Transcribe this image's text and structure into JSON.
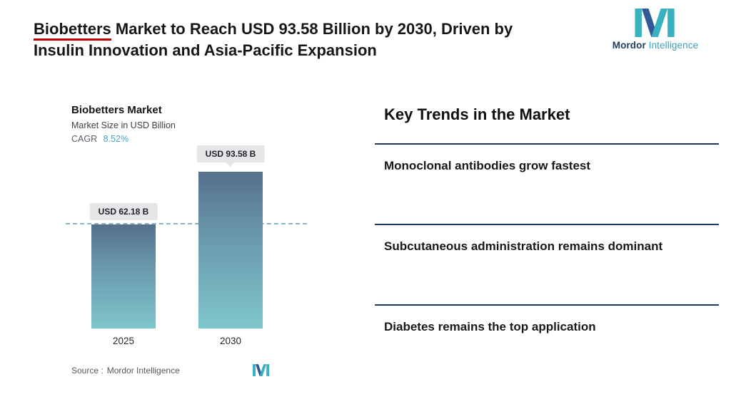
{
  "header": {
    "title_underlined": "Biobetters",
    "title_line1_rest": " Market to Reach USD 93.58 Billion by 2030, Driven by",
    "title_line2": "Insulin Innovation and Asia-Pacific Expansion"
  },
  "brand": {
    "name_bold": "Mordor",
    "name_light": "Intelligence"
  },
  "chart_data": {
    "type": "bar",
    "title": "Biobetters Market",
    "subtitle": "Market Size in USD Billion",
    "cagr_label": "CAGR",
    "cagr_value": "8.52%",
    "categories": [
      "2025",
      "2030"
    ],
    "values": [
      62.18,
      93.58
    ],
    "value_labels": [
      "USD 62.18 B",
      "USD 93.58 B"
    ],
    "ylabel": "Market Size in USD Billion",
    "ylim": [
      0,
      100
    ],
    "guide_line_value": 62.18,
    "grid": false,
    "legend": false,
    "source_label": "Source :",
    "source_value": "Mordor Intelligence"
  },
  "trends": {
    "heading": "Key Trends in the Market",
    "items": [
      "Monoclonal antibodies grow fastest",
      "Subcutaneous administration remains dominant",
      "Diabetes remains the top application"
    ]
  },
  "colors": {
    "accent_teal": "#38b2c0",
    "brand_navy": "#1d3c5e",
    "underline_red": "#c00000",
    "divider_navy": "#203864",
    "bar_gradient_top": "#56708c",
    "bar_gradient_bottom": "#7fc5cc",
    "cagr_value_color": "#4aa0c0",
    "label_box_gray": "#e5e6e8"
  }
}
